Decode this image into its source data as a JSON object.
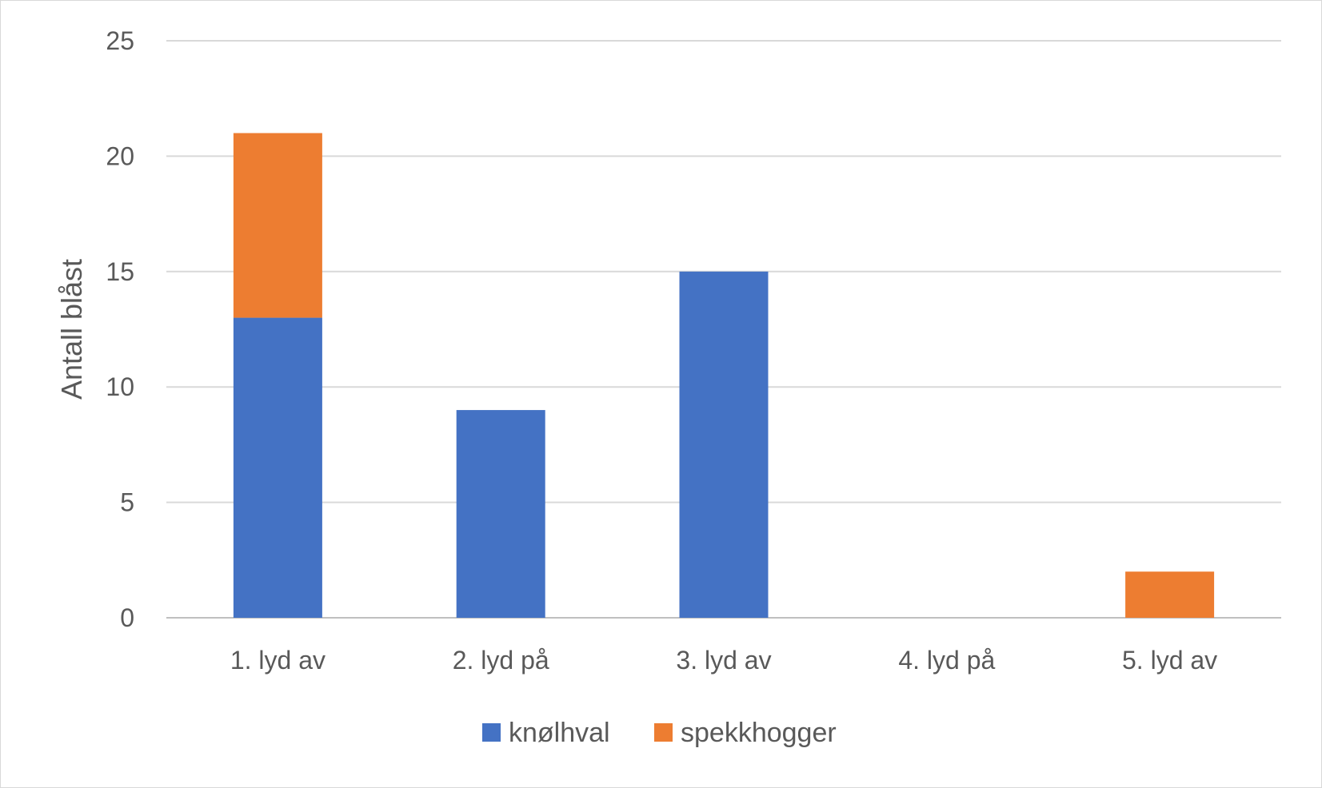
{
  "chart_data": {
    "type": "bar",
    "stacked": true,
    "title": "",
    "xlabel": "",
    "ylabel": "Antall blåst",
    "ylim": [
      0,
      25
    ],
    "yticks": [
      0,
      5,
      10,
      15,
      20,
      25
    ],
    "grid": true,
    "legend_position": "bottom",
    "categories": [
      "1. lyd av",
      "2. lyd på",
      "3. lyd av",
      "4. lyd på",
      "5. lyd av"
    ],
    "series": [
      {
        "name": "knølhval",
        "color": "#4472C4",
        "values": [
          13,
          9,
          15,
          0,
          0
        ]
      },
      {
        "name": "spekkhogger",
        "color": "#ED7D31",
        "values": [
          8,
          0,
          0,
          0,
          2
        ]
      }
    ]
  }
}
